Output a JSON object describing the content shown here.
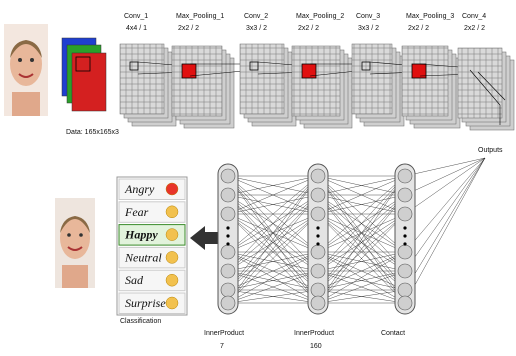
{
  "input_label": "Data: 165x165x3",
  "layers": [
    {
      "name": "Conv_1",
      "params": "4x4 / 1"
    },
    {
      "name": "Max_Pooling_1",
      "params": "2x2 / 2"
    },
    {
      "name": "Conv_2",
      "params": "3x3 / 2"
    },
    {
      "name": "Max_Pooling_2",
      "params": "2x2 / 2"
    },
    {
      "name": "Conv_3",
      "params": "3x3 / 2"
    },
    {
      "name": "Max_Pooling_3",
      "params": "2x2 / 2"
    },
    {
      "name": "Conv_4",
      "params": "2x2 / 2"
    }
  ],
  "outputs_label": "Outputs",
  "classes": [
    "Angry",
    "Fear",
    "Happy",
    "Neutral",
    "Sad",
    "Surprise"
  ],
  "classification_label": "Classification",
  "fc_layers": [
    {
      "name": "InnerProduct",
      "size": "7"
    },
    {
      "name": "InnerProduct",
      "size": "160"
    },
    {
      "name": "Contact"
    }
  ]
}
